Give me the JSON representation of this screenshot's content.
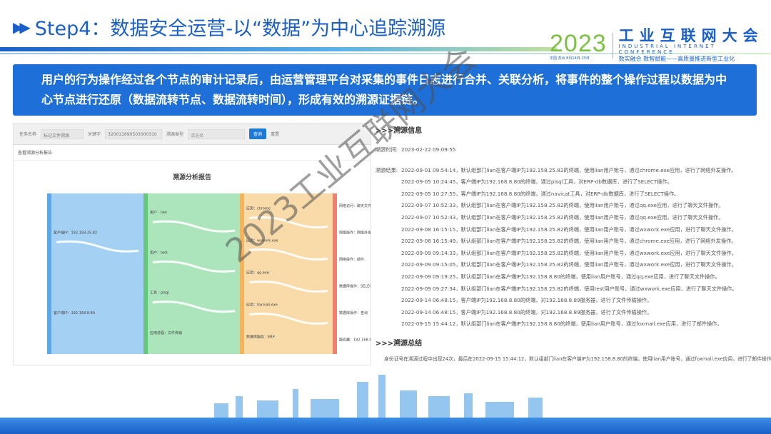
{
  "header": {
    "title": "Step4：数据安全运营-以“数据”为中心追踪溯源",
    "arrow_icon": "double-play-icon"
  },
  "logo": {
    "year": "2023",
    "location_date": "中国·苏州 8月14日-15日",
    "name_cn": "工业互联网大会",
    "name_en": "INDUSTRIAL INTERNET CONFERENCE",
    "slogan": "数实融合 数智赋能——高质量推进新型工业化"
  },
  "banner": {
    "text": "用户的行为操作经过各个节点的审计记录后，由运营管理平台对采集的事件日志进行合并、关联分析，将事件的整个操作过程以数据为中心节点进行还原（数据流转节点、数据流转时间），形成有效的溯源证据链。"
  },
  "screenshot": {
    "filters": [
      {
        "label": "任务名称",
        "value": "标记文件溯源"
      },
      {
        "label": "关键字",
        "value": "320011690503000310"
      },
      {
        "label": "溯源类型",
        "value": "请选择"
      }
    ],
    "search_button": "查询",
    "reset_button": "重置",
    "breadcrumb": "查看溯源分析报告",
    "report_title": "溯源分析报告",
    "sankey": {
      "columns": [
        {
          "color": "#5aa8e6",
          "band": "#9fcef3",
          "nodes": [
            "客户端IP：192.158.25.82",
            "客户端IP：192.158.8.80"
          ]
        },
        {
          "color": "#64c878",
          "band": "#a8e4b8",
          "nodes": [
            "用户：lian",
            "用户：test",
            "工具：plsql",
            "应用进程：文件传输"
          ]
        },
        {
          "color": "#f5b45a",
          "band": "#f9d9a4",
          "nodes": [
            "应用：chrome",
            "应用：wxwork.exe",
            "应用：qq.exe",
            "应用：foxmail.exe",
            "数据库服务：ERP"
          ]
        },
        {
          "color": "#ee8070",
          "band": "#f4b0a4",
          "nodes": [
            "网络访问：聊天文件",
            "网络操作：网络外发",
            "网络操作：邮件",
            "数据库操作：SELECT",
            "数据库操作：查询",
            "服务器：192.168.8.89"
          ]
        }
      ]
    }
  },
  "trace": {
    "info_heading": ">>>溯源信息",
    "time_label": "溯源时间:",
    "time_value": "2023-02-22 09:09:55",
    "result_label": "溯源结果:",
    "results": [
      "2022-09-01 09:54:14，默认组部门lian在客户端IP为192.158.25.82的终端，使用lian用户账号，通过chrome.exe应用，进行了网络外发操作。",
      "2022-09-05 10:24:45，客户端IP为192.168.8.80的终端，通过plsql工具，对ERP-db数据库，进行了SELECT操作。",
      "2022-09-05 10:27:55，客户端IP为192.168.8.80的终端，通过navicat工具，对ERP-db数据库，进行了SELECT操作。",
      "2022-09-07 10:52:33，默认组部门lian在客户端IP为192.158.25.82的终端，使用lian用户账号，通过qq.exe应用，进行了聊天文件操作。",
      "2022-09-07 10:52:43，默认组部门lian在客户端IP为192.158.25.82的终端，使用lian用户账号，通过qq.exe应用，进行了聊天文件操作。",
      "2022-09-08 16:15:15，默认组部门lian在客户端IP为192.158.25.82的终端，使用lian用户账号，通过wxwork.exe应用，进行了聊天文件操作。",
      "2022-09-08 16:15:49，默认组部门lian在客户端IP为192.158.25.82的终端，使用lian用户账号，通过chrome.exe应用，进行了网络外发操作。",
      "2022-09-09 09:14:33，默认组部门lian在客户端IP为192.158.25.82的终端，使用lian用户账号，通过wxwork.exe应用，进行了聊天文件操作。",
      "2022-09-09 09:15:05，默认组部门lian在客户端IP为192.158.25.82的终端，使用lian用户账号，通过wxwork.exe应用，进行了聊天文件操作。",
      "2022-09-09 09:19:25，默认组部门lian在客户端IP为192.158.8.80的终端，使用lian用户账号，通过qq.exe应用，进行了聊天文件操作。",
      "2022-09-09 09:27:34，默认组部门lian在客户端IP为192.158.25.82的终端，使用test用户账号，通过wxwork.exe应用，进行了聊天文件操作。",
      "2022-09-14 06:48:15，客户端IP为192.168.8.80的终端，对192.168.8.89服务器，进行了文件传输操作。",
      "2022-09-14 06:48:15，客户端IP为192.168.8.80的终端，对192.168.8.89服务器，进行了文件传输操作。",
      "2022-09-15 15:44:12，默认组部门lian在客户端IP为192.158.8.80的终端，使用lian用户账号，通过foxmail.exe应用，进行了邮件操作。"
    ],
    "summary_heading": ">>>溯源总结",
    "summary": "身份证号在溯源过程中出现24次，最后在2022-09-15 15:44:12，默认组部门lian在客户端IP为192.158.8.80的终端，使用lian用户账号，通过foxmail.exe应用，进行了邮件操作。"
  },
  "watermark": "2023工业互联网大会",
  "colors": {
    "brand_blue": "#1e6fd8",
    "logo_green": "#7cc242"
  }
}
